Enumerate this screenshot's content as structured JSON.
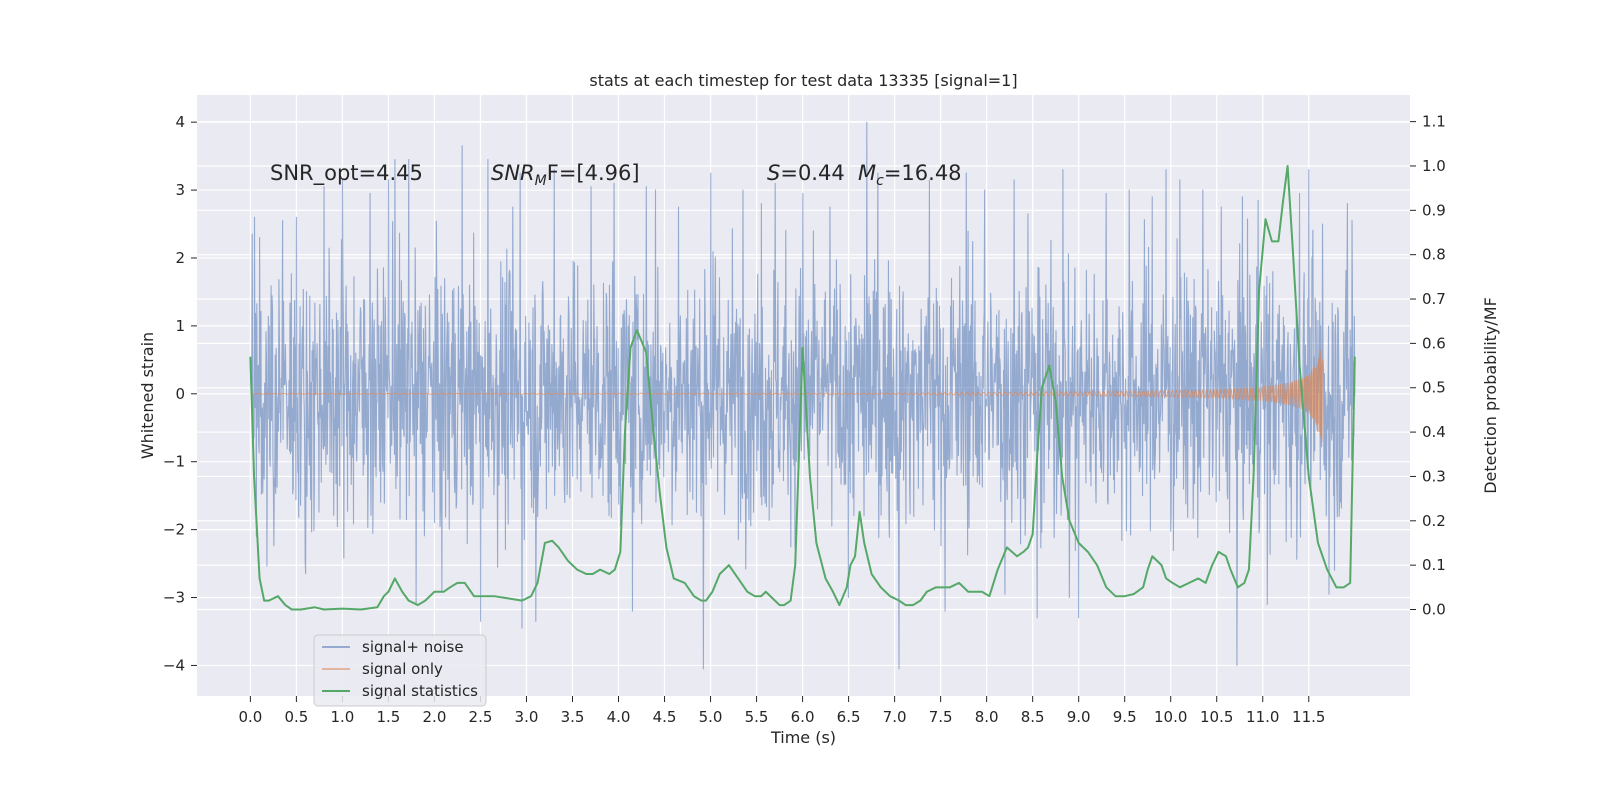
{
  "chart_data": {
    "type": "line",
    "title": "stats at each timestep for test data 13335 [signal=1]",
    "xlabel": "Time (s)",
    "ylabel": "Whitened strain",
    "y2label": "Detection probability/MF",
    "xlim": [
      -0.58,
      12.6
    ],
    "ylim": [
      -4.45,
      4.4
    ],
    "y2lim": [
      -0.195,
      1.16
    ],
    "xticks": [
      "0.0",
      "0.5",
      "1.0",
      "1.5",
      "2.0",
      "2.5",
      "3.0",
      "3.5",
      "4.0",
      "4.5",
      "5.0",
      "5.5",
      "6.0",
      "6.5",
      "7.0",
      "7.5",
      "8.0",
      "8.5",
      "9.0",
      "9.5",
      "10.0",
      "10.5",
      "11.0",
      "11.5"
    ],
    "yticks": [
      "4",
      "3",
      "2",
      "1",
      "0",
      "−1",
      "−2",
      "−3",
      "−4"
    ],
    "y2ticks": [
      "1.1",
      "1.0",
      "0.9",
      "0.8",
      "0.7",
      "0.6",
      "0.5",
      "0.4",
      "0.3",
      "0.2",
      "0.1",
      "0.0"
    ],
    "grid": true,
    "legend_position": "lower-left",
    "annotations": [
      {
        "text": "SNR_opt=4.45"
      },
      {
        "text": "SNR",
        "sub": "M",
        "rest": "F=[4.96]"
      },
      {
        "text": "S",
        "rest": "=0.44"
      },
      {
        "text": "M",
        "sub": "c",
        "rest": "=16.48"
      }
    ],
    "series": [
      {
        "name": "signal+ noise",
        "color": "#4c72b0",
        "kind": "noise",
        "x_range": [
          0.0,
          12.0
        ],
        "band_sigma": 1.0,
        "spikes": [
          [
            0.02,
            2.35
          ],
          [
            0.1,
            2.3
          ],
          [
            0.35,
            2.55
          ],
          [
            0.5,
            2.6
          ],
          [
            0.6,
            -2.65
          ],
          [
            0.8,
            3.05
          ],
          [
            1.0,
            3.15
          ],
          [
            1.3,
            2.95
          ],
          [
            1.5,
            3.15
          ],
          [
            1.57,
            3.45
          ],
          [
            1.72,
            3.45
          ],
          [
            1.8,
            -3.1
          ],
          [
            2.08,
            -2.9
          ],
          [
            2.3,
            3.65
          ],
          [
            2.5,
            -3.35
          ],
          [
            2.58,
            3.45
          ],
          [
            2.85,
            2.75
          ],
          [
            2.93,
            3.25
          ],
          [
            2.95,
            -3.45
          ],
          [
            3.1,
            -3.35
          ],
          [
            3.3,
            3.3
          ],
          [
            3.7,
            3.05
          ],
          [
            3.95,
            3.1
          ],
          [
            4.15,
            -3.2
          ],
          [
            4.3,
            3.05
          ],
          [
            4.4,
            3.0
          ],
          [
            4.65,
            2.75
          ],
          [
            4.92,
            -4.05
          ],
          [
            5.0,
            3.25
          ],
          [
            5.35,
            3.0
          ],
          [
            5.55,
            2.8
          ],
          [
            5.7,
            3.1
          ],
          [
            6.0,
            2.95
          ],
          [
            6.3,
            2.75
          ],
          [
            6.5,
            -3.0
          ],
          [
            6.7,
            4.0
          ],
          [
            6.82,
            3.25
          ],
          [
            7.05,
            -4.05
          ],
          [
            7.38,
            3.15
          ],
          [
            7.55,
            -3.2
          ],
          [
            7.78,
            3.25
          ],
          [
            7.98,
            3.0
          ],
          [
            8.2,
            -2.95
          ],
          [
            8.3,
            3.15
          ],
          [
            8.45,
            2.65
          ],
          [
            8.55,
            -3.3
          ],
          [
            8.83,
            3.3
          ],
          [
            8.9,
            -3.0
          ],
          [
            9.0,
            -3.3
          ],
          [
            9.3,
            2.95
          ],
          [
            9.55,
            3.0
          ],
          [
            9.8,
            2.9
          ],
          [
            9.95,
            3.3
          ],
          [
            10.1,
            3.15
          ],
          [
            10.35,
            3.0
          ],
          [
            10.55,
            2.75
          ],
          [
            10.72,
            -4.0
          ],
          [
            10.78,
            2.9
          ],
          [
            10.95,
            2.85
          ],
          [
            11.05,
            -3.1
          ],
          [
            11.4,
            2.95
          ],
          [
            11.5,
            3.3
          ],
          [
            11.65,
            2.5
          ],
          [
            11.72,
            -2.95
          ],
          [
            11.92,
            2.8
          ],
          [
            11.97,
            2.55
          ]
        ]
      },
      {
        "name": "signal only",
        "color": "#dd8452",
        "kind": "chirp",
        "x_range": [
          0.0,
          11.65
        ],
        "peak_amplitude": 0.75,
        "envelope": [
          [
            0.0,
            0.005
          ],
          [
            7.0,
            0.01
          ],
          [
            9.0,
            0.03
          ],
          [
            10.0,
            0.045
          ],
          [
            10.5,
            0.06
          ],
          [
            11.0,
            0.1
          ],
          [
            11.3,
            0.17
          ],
          [
            11.5,
            0.28
          ],
          [
            11.6,
            0.5
          ],
          [
            11.65,
            0.75
          ]
        ]
      },
      {
        "name": "signal statistics",
        "color": "#55a868",
        "kind": "line",
        "axis": "right",
        "x": [
          0.0,
          0.04,
          0.1,
          0.15,
          0.2,
          0.3,
          0.38,
          0.45,
          0.55,
          0.7,
          0.8,
          1.0,
          1.2,
          1.38,
          1.45,
          1.5,
          1.57,
          1.65,
          1.72,
          1.82,
          1.9,
          2.0,
          2.1,
          2.17,
          2.25,
          2.33,
          2.43,
          2.55,
          2.65,
          2.8,
          2.95,
          3.05,
          3.12,
          3.2,
          3.28,
          3.35,
          3.45,
          3.55,
          3.65,
          3.72,
          3.8,
          3.9,
          3.96,
          4.02,
          4.07,
          4.13,
          4.2,
          4.3,
          4.38,
          4.45,
          4.52,
          4.6,
          4.72,
          4.82,
          4.9,
          4.95,
          5.02,
          5.1,
          5.2,
          5.3,
          5.4,
          5.48,
          5.55,
          5.6,
          5.7,
          5.75,
          5.8,
          5.87,
          5.92,
          6.0,
          6.08,
          6.15,
          6.25,
          6.33,
          6.4,
          6.48,
          6.52,
          6.57,
          6.62,
          6.67,
          6.75,
          6.85,
          6.95,
          7.05,
          7.12,
          7.2,
          7.28,
          7.35,
          7.45,
          7.52,
          7.6,
          7.7,
          7.8,
          7.87,
          7.95,
          8.03,
          8.12,
          8.22,
          8.33,
          8.4,
          8.45,
          8.5,
          8.55,
          8.6,
          8.68,
          8.75,
          8.82,
          8.9,
          9.0,
          9.1,
          9.2,
          9.3,
          9.4,
          9.5,
          9.6,
          9.7,
          9.75,
          9.8,
          9.9,
          9.95,
          10.02,
          10.1,
          10.2,
          10.3,
          10.38,
          10.45,
          10.52,
          10.6,
          10.65,
          10.73,
          10.8,
          10.85,
          10.9,
          10.96,
          11.03,
          11.1,
          11.17,
          11.22,
          11.27,
          11.33,
          11.4,
          11.5,
          11.6,
          11.7,
          11.8,
          11.88,
          11.95,
          12.0
        ],
        "values": [
          0.57,
          0.3,
          0.07,
          0.02,
          0.02,
          0.03,
          0.01,
          0.0,
          0.0,
          0.005,
          0.0,
          0.002,
          0.0,
          0.005,
          0.03,
          0.04,
          0.07,
          0.04,
          0.02,
          0.01,
          0.02,
          0.04,
          0.04,
          0.05,
          0.06,
          0.06,
          0.03,
          0.03,
          0.03,
          0.025,
          0.02,
          0.03,
          0.06,
          0.15,
          0.155,
          0.14,
          0.11,
          0.09,
          0.08,
          0.08,
          0.09,
          0.08,
          0.09,
          0.13,
          0.4,
          0.59,
          0.63,
          0.58,
          0.4,
          0.26,
          0.14,
          0.07,
          0.06,
          0.03,
          0.02,
          0.02,
          0.04,
          0.08,
          0.1,
          0.07,
          0.04,
          0.03,
          0.03,
          0.04,
          0.02,
          0.01,
          0.01,
          0.02,
          0.1,
          0.59,
          0.3,
          0.15,
          0.07,
          0.04,
          0.01,
          0.05,
          0.1,
          0.12,
          0.22,
          0.15,
          0.08,
          0.05,
          0.03,
          0.02,
          0.01,
          0.01,
          0.02,
          0.04,
          0.05,
          0.05,
          0.05,
          0.06,
          0.04,
          0.04,
          0.04,
          0.03,
          0.09,
          0.14,
          0.12,
          0.13,
          0.14,
          0.17,
          0.35,
          0.5,
          0.55,
          0.47,
          0.3,
          0.2,
          0.15,
          0.13,
          0.1,
          0.05,
          0.03,
          0.03,
          0.035,
          0.05,
          0.09,
          0.12,
          0.1,
          0.07,
          0.06,
          0.05,
          0.06,
          0.07,
          0.06,
          0.1,
          0.13,
          0.12,
          0.09,
          0.05,
          0.06,
          0.09,
          0.3,
          0.72,
          0.88,
          0.83,
          0.83,
          0.92,
          1.0,
          0.8,
          0.55,
          0.3,
          0.15,
          0.09,
          0.05,
          0.05,
          0.06,
          0.57
        ]
      }
    ]
  }
}
